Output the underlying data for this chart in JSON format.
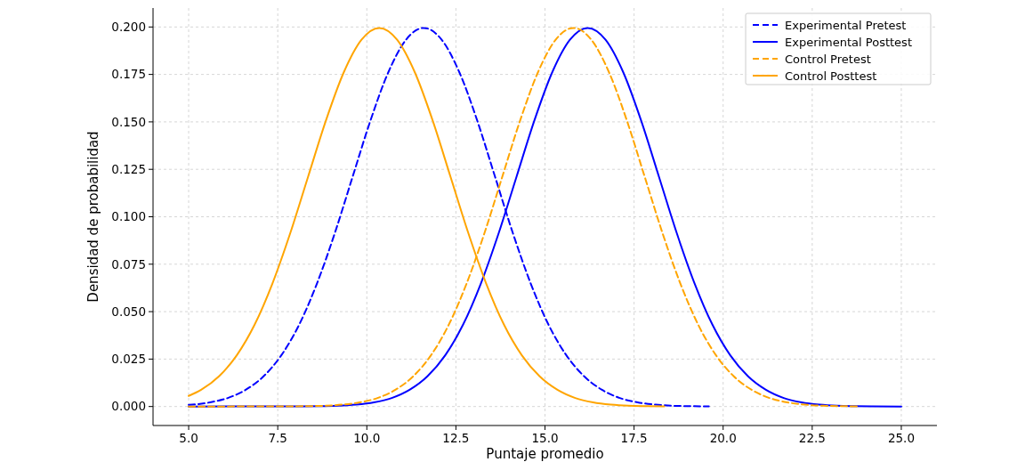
{
  "chart_data": {
    "type": "line",
    "xlabel": "Puntaje promedio",
    "ylabel": "Densidad de probabilidad",
    "xlim": [
      4,
      26
    ],
    "xticks": [
      {
        "value": 5,
        "label": "5.0"
      },
      {
        "value": 7.5,
        "label": "7.5"
      },
      {
        "value": 10,
        "label": "10.0"
      },
      {
        "value": 12.5,
        "label": "12.5"
      },
      {
        "value": 15,
        "label": "15.0"
      },
      {
        "value": 17.5,
        "label": "17.5"
      },
      {
        "value": 20,
        "label": "20.0"
      },
      {
        "value": 22.5,
        "label": "22.5"
      },
      {
        "value": 25,
        "label": "25.0"
      }
    ],
    "ylim": [
      -0.01,
      0.21
    ],
    "yticks": [
      {
        "value": 0,
        "label": "0.000"
      },
      {
        "value": 0.025,
        "label": "0.025"
      },
      {
        "value": 0.05,
        "label": "0.050"
      },
      {
        "value": 0.075,
        "label": "0.075"
      },
      {
        "value": 0.1,
        "label": "0.100"
      },
      {
        "value": 0.125,
        "label": "0.125"
      },
      {
        "value": 0.15,
        "label": "0.150"
      },
      {
        "value": 0.175,
        "label": "0.175"
      },
      {
        "value": 0.2,
        "label": "0.200"
      }
    ],
    "grid": true,
    "legend": "top right",
    "series": [
      {
        "name": "Experimental Pretest",
        "color": "#0000ff",
        "line_style": "dashed",
        "x": [
          5,
          5.1,
          5.6,
          6.1,
          6.6,
          7.1,
          7.6,
          8.1,
          8.6,
          9.1,
          9.6,
          10.1,
          10.6,
          11.1,
          11.6,
          12.1,
          12.6,
          13.1,
          13.6,
          14.1,
          14.6,
          15.1,
          15.6,
          16.1,
          16.6,
          17.1,
          17.6,
          18.1,
          18.6,
          19.1,
          19.6
        ],
        "values": [
          0.0009,
          0.001,
          0.0022,
          0.0045,
          0.0088,
          0.0159,
          0.027,
          0.0431,
          0.0648,
          0.0913,
          0.121,
          0.1506,
          0.176,
          0.1933,
          0.1995,
          0.1933,
          0.176,
          0.1506,
          0.121,
          0.0913,
          0.0648,
          0.0431,
          0.027,
          0.0159,
          0.0088,
          0.0045,
          0.0022,
          0.001,
          0.0004,
          0.0002,
          0.0001
        ]
      },
      {
        "name": "Experimental Posttest",
        "color": "#0000ff",
        "line_style": "solid",
        "x": [
          5,
          8.2,
          8.7,
          9.2,
          9.7,
          10.2,
          10.7,
          11.2,
          11.7,
          12.2,
          12.7,
          13.2,
          13.7,
          14.2,
          14.7,
          15.2,
          15.7,
          16.2,
          16.7,
          17.2,
          17.7,
          18.2,
          18.7,
          19.2,
          19.7,
          20.2,
          20.7,
          21.2,
          21.7,
          22.2,
          22.7,
          23.2,
          23.7,
          24.2,
          25
        ],
        "values": [
          0,
          0.0001,
          0.0002,
          0.0004,
          0.001,
          0.0022,
          0.0045,
          0.0088,
          0.0159,
          0.027,
          0.0431,
          0.0648,
          0.0913,
          0.121,
          0.1506,
          0.176,
          0.1933,
          0.1995,
          0.1933,
          0.176,
          0.1506,
          0.121,
          0.0913,
          0.0648,
          0.0431,
          0.027,
          0.0159,
          0.0088,
          0.0045,
          0.0022,
          0.001,
          0.0004,
          0.0002,
          0.0001,
          0
        ]
      },
      {
        "name": "Control Pretest",
        "color": "#ffa500",
        "line_style": "dashed",
        "x": [
          5,
          7.8,
          8.3,
          8.8,
          9.3,
          9.8,
          10.3,
          10.8,
          11.3,
          11.8,
          12.3,
          12.8,
          13.3,
          13.8,
          14.3,
          14.8,
          15.3,
          15.8,
          16.3,
          16.8,
          17.3,
          17.8,
          18.3,
          18.8,
          19.3,
          19.8,
          20.3,
          20.8,
          21.3,
          21.8,
          22.3,
          22.8,
          23.3,
          23.8
        ],
        "values": [
          0,
          0.0001,
          0.0002,
          0.0004,
          0.001,
          0.0022,
          0.0045,
          0.0088,
          0.0159,
          0.027,
          0.0431,
          0.0648,
          0.0913,
          0.121,
          0.1506,
          0.176,
          0.1933,
          0.1995,
          0.1933,
          0.176,
          0.1506,
          0.121,
          0.0913,
          0.0648,
          0.0431,
          0.027,
          0.0159,
          0.0088,
          0.0045,
          0.0022,
          0.001,
          0.0004,
          0.0002,
          0.0001
        ]
      },
      {
        "name": "Control Posttest",
        "color": "#ffa500",
        "line_style": "solid",
        "x": [
          5,
          5.35,
          5.85,
          6.35,
          6.85,
          7.35,
          7.85,
          8.35,
          8.85,
          9.35,
          9.85,
          10.35,
          10.85,
          11.35,
          11.85,
          12.35,
          12.85,
          13.35,
          13.85,
          14.35,
          14.85,
          15.35,
          15.85,
          16.35,
          16.85,
          17.35,
          17.85,
          18.35
        ],
        "values": [
          0.0056,
          0.0088,
          0.0159,
          0.027,
          0.0431,
          0.0648,
          0.0913,
          0.121,
          0.1506,
          0.176,
          0.1933,
          0.1995,
          0.1933,
          0.176,
          0.1506,
          0.121,
          0.0913,
          0.0648,
          0.0431,
          0.027,
          0.0159,
          0.0088,
          0.0045,
          0.0022,
          0.001,
          0.0004,
          0.0002,
          0.0001
        ]
      }
    ]
  }
}
